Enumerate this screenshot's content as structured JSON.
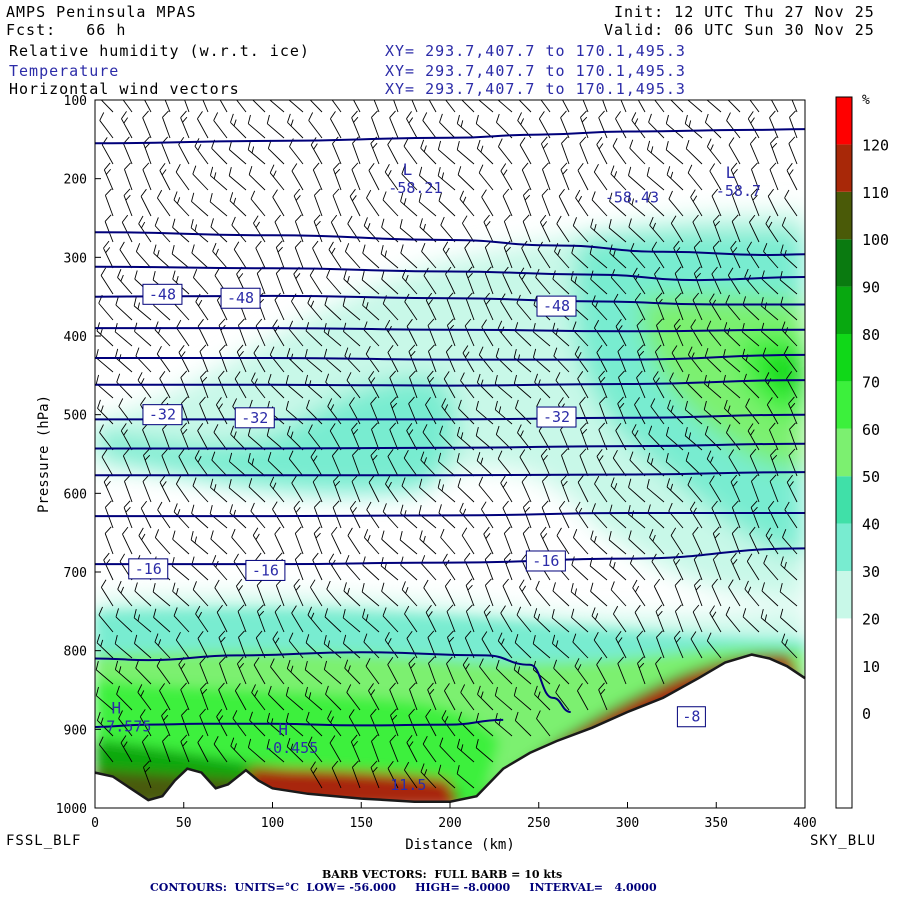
{
  "header": {
    "model": "AMPS Peninsula MPAS",
    "fcst_label": "Fcst:",
    "fcst_value": "66 h",
    "init": "Init: 12 UTC Thu 27 Nov 25",
    "valid": "Valid: 06 UTC Sun 30 Nov 25",
    "fields": [
      {
        "name": "Relative humidity (w.r.t. ice)",
        "xy": "XY= 293.7,407.7 to 170.1,495.3"
      },
      {
        "name": "Temperature",
        "xy": "XY= 293.7,407.7 to 170.1,495.3"
      },
      {
        "name": "Horizontal wind vectors",
        "xy": "XY= 293.7,407.7 to 170.1,495.3"
      }
    ]
  },
  "endpoints": {
    "left": "FSSL_BLF",
    "right": "SKY_BLU"
  },
  "footer": {
    "barb": "BARB VECTORS:  FULL BARB = 10 kts",
    "contours": "CONTOURS:  UNITS=°C  LOW= -56.000     HIGH= -8.0000     INTERVAL=   4.0000"
  },
  "colors": {
    "bg": "#ffffff",
    "contour": "#00007a",
    "label_text": "#2c2ca8",
    "terrain": "#1a1a1a"
  },
  "colorbar": {
    "unit": "%",
    "levels": [
      {
        "label": "",
        "color": "#ffffff"
      },
      {
        "label": "0",
        "color": "#ffffff"
      },
      {
        "label": "10",
        "color": "#ffffff"
      },
      {
        "label": "20",
        "color": "#ffffff"
      },
      {
        "label": "30",
        "color": "#c8f8e8"
      },
      {
        "label": "40",
        "color": "#78ecd0"
      },
      {
        "label": "50",
        "color": "#40e0a8"
      },
      {
        "label": "60",
        "color": "#7cf070"
      },
      {
        "label": "70",
        "color": "#3cf03c"
      },
      {
        "label": "80",
        "color": "#10d818"
      },
      {
        "label": "90",
        "color": "#08a810"
      },
      {
        "label": "100",
        "color": "#0a7a10"
      },
      {
        "label": "110",
        "color": "#4a5a08"
      },
      {
        "label": "120",
        "color": "#a82808"
      },
      {
        "label": "",
        "color": "#ff0000"
      }
    ]
  },
  "chart_data": {
    "type": "cross-section",
    "xlabel": "Distance (km)",
    "ylabel": "Pressure (hPa)",
    "xlim": [
      0,
      400
    ],
    "ylim": [
      1000,
      100
    ],
    "xticks": [
      0,
      50,
      100,
      150,
      200,
      250,
      300,
      350,
      400
    ],
    "yticks": [
      100,
      200,
      300,
      400,
      500,
      600,
      700,
      800,
      900,
      1000
    ],
    "temperature_contours": [
      {
        "level": -56,
        "points": [
          [
            0,
            155
          ],
          [
            100,
            152
          ],
          [
            200,
            148
          ],
          [
            250,
            144
          ],
          [
            300,
            140
          ],
          [
            370,
            138
          ],
          [
            400,
            137
          ]
        ]
      },
      {
        "level": -52,
        "points": [
          [
            0,
            268
          ],
          [
            100,
            272
          ],
          [
            200,
            278
          ],
          [
            260,
            285
          ],
          [
            320,
            293
          ],
          [
            380,
            297
          ],
          [
            400,
            296
          ]
        ]
      },
      {
        "level": -50,
        "points": [
          [
            0,
            312
          ],
          [
            100,
            314
          ],
          [
            200,
            318
          ],
          [
            280,
            322
          ],
          [
            340,
            329
          ],
          [
            400,
            325
          ]
        ]
      },
      {
        "level": -48,
        "points": [
          [
            0,
            350
          ],
          [
            100,
            349
          ],
          [
            200,
            352
          ],
          [
            280,
            356
          ],
          [
            350,
            360
          ],
          [
            400,
            360
          ]
        ]
      },
      {
        "level": -44,
        "points": [
          [
            0,
            390
          ],
          [
            100,
            390
          ],
          [
            200,
            392
          ],
          [
            300,
            394
          ],
          [
            400,
            392
          ]
        ]
      },
      {
        "level": -40,
        "points": [
          [
            0,
            428
          ],
          [
            100,
            428
          ],
          [
            200,
            430
          ],
          [
            300,
            430
          ],
          [
            400,
            424
          ]
        ]
      },
      {
        "level": -36,
        "points": [
          [
            0,
            462
          ],
          [
            100,
            462
          ],
          [
            200,
            463
          ],
          [
            300,
            461
          ],
          [
            400,
            456
          ]
        ]
      },
      {
        "level": -32,
        "points": [
          [
            0,
            506
          ],
          [
            100,
            506
          ],
          [
            200,
            506
          ],
          [
            300,
            504
          ],
          [
            400,
            500
          ]
        ]
      },
      {
        "level": -28,
        "points": [
          [
            0,
            543
          ],
          [
            100,
            543
          ],
          [
            200,
            542
          ],
          [
            300,
            540
          ],
          [
            400,
            537
          ]
        ]
      },
      {
        "level": -24,
        "points": [
          [
            0,
            577
          ],
          [
            100,
            577
          ],
          [
            200,
            577
          ],
          [
            300,
            576
          ],
          [
            400,
            573
          ]
        ]
      },
      {
        "level": -20,
        "points": [
          [
            0,
            629
          ],
          [
            100,
            629
          ],
          [
            200,
            628
          ],
          [
            300,
            625
          ],
          [
            400,
            625
          ]
        ]
      },
      {
        "level": -16,
        "points": [
          [
            0,
            690
          ],
          [
            100,
            690
          ],
          [
            200,
            688
          ],
          [
            300,
            683
          ],
          [
            400,
            670
          ]
        ]
      },
      {
        "level": -12,
        "points": [
          [
            0,
            810
          ],
          [
            30,
            812
          ],
          [
            80,
            806
          ],
          [
            150,
            802
          ],
          [
            220,
            806
          ],
          [
            245,
            818
          ],
          [
            258,
            860
          ],
          [
            268,
            878
          ]
        ]
      },
      {
        "level": -8,
        "points": [
          [
            0,
            897
          ],
          [
            30,
            894
          ],
          [
            60,
            893
          ],
          [
            100,
            893
          ],
          [
            150,
            895
          ],
          [
            200,
            894
          ],
          [
            230,
            888
          ]
        ]
      }
    ],
    "contour_labels": [
      {
        "text": "-48",
        "x": 38,
        "p": 347
      },
      {
        "text": "-48",
        "x": 82,
        "p": 352
      },
      {
        "text": "-48",
        "x": 260,
        "p": 362
      },
      {
        "text": "-32",
        "x": 38,
        "p": 500
      },
      {
        "text": "-32",
        "x": 90,
        "p": 504
      },
      {
        "text": "-32",
        "x": 260,
        "p": 503
      },
      {
        "text": "-16",
        "x": 30,
        "p": 696
      },
      {
        "text": "-16",
        "x": 96,
        "p": 698
      },
      {
        "text": "-16",
        "x": 254,
        "p": 686
      },
      {
        "text": "-8",
        "x": 336,
        "p": 884
      }
    ],
    "extrema": [
      {
        "mark": "L",
        "value": "-58.21",
        "x": 176,
        "p": 218
      },
      {
        "mark": "",
        "value": "-58.43",
        "x": 298,
        "p": 230
      },
      {
        "mark": "L",
        "value": "-58.7",
        "x": 358,
        "p": 222
      },
      {
        "mark": "H",
        "value": "-7.575",
        "x": 12,
        "p": 903
      },
      {
        "mark": "H",
        "value": "-0.455",
        "x": 106,
        "p": 930
      },
      {
        "mark": "",
        "value": "11.5",
        "x": 172,
        "p": 977
      }
    ],
    "terrain_surface": [
      [
        0,
        1000
      ],
      [
        0,
        955
      ],
      [
        10,
        960
      ],
      [
        20,
        975
      ],
      [
        30,
        990
      ],
      [
        38,
        985
      ],
      [
        45,
        965
      ],
      [
        52,
        950
      ],
      [
        60,
        955
      ],
      [
        68,
        975
      ],
      [
        75,
        970
      ],
      [
        85,
        952
      ],
      [
        92,
        965
      ],
      [
        100,
        975
      ],
      [
        120,
        982
      ],
      [
        150,
        988
      ],
      [
        180,
        992
      ],
      [
        200,
        992
      ],
      [
        215,
        985
      ],
      [
        230,
        950
      ],
      [
        245,
        930
      ],
      [
        260,
        915
      ],
      [
        280,
        898
      ],
      [
        300,
        878
      ],
      [
        320,
        860
      ],
      [
        340,
        835
      ],
      [
        355,
        815
      ],
      [
        370,
        805
      ],
      [
        380,
        810
      ],
      [
        390,
        820
      ],
      [
        400,
        835
      ],
      [
        400,
        1000
      ]
    ]
  }
}
